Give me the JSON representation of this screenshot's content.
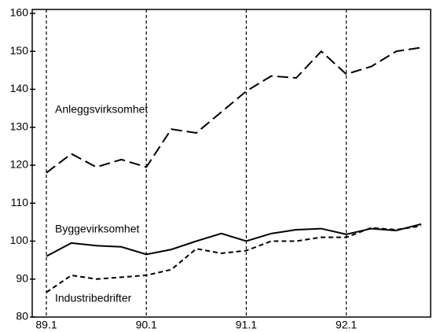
{
  "chart_data": {
    "type": "line",
    "categories": [
      "89.1",
      null,
      null,
      null,
      "90.1",
      null,
      null,
      null,
      "91.1",
      null,
      null,
      null,
      "92.1",
      null,
      null,
      null
    ],
    "series": [
      {
        "name": "Anleggsvirksomhet",
        "color": "#000000",
        "dash": "long",
        "values": [
          118,
          123,
          119.5,
          121.5,
          119.5,
          129.5,
          128.5,
          134,
          139.5,
          143.5,
          143,
          150,
          144,
          146,
          150,
          151
        ]
      },
      {
        "name": "Byggevirksomhet",
        "color": "#000000",
        "dash": "solid",
        "values": [
          96,
          99.5,
          98.8,
          98.5,
          96.5,
          97.8,
          100,
          102,
          100,
          102,
          103,
          103.3,
          101.8,
          103.3,
          102.8,
          104.5
        ]
      },
      {
        "name": "Industribedrifter",
        "color": "#000000",
        "dash": "short",
        "values": [
          86.5,
          91,
          90,
          90.5,
          91,
          92.5,
          98,
          96.8,
          97.5,
          100,
          100,
          101,
          101,
          103.5,
          103,
          104
        ]
      }
    ],
    "ylim": [
      80,
      160
    ],
    "yticks": [
      80,
      90,
      100,
      110,
      120,
      130,
      140,
      150,
      160
    ]
  }
}
